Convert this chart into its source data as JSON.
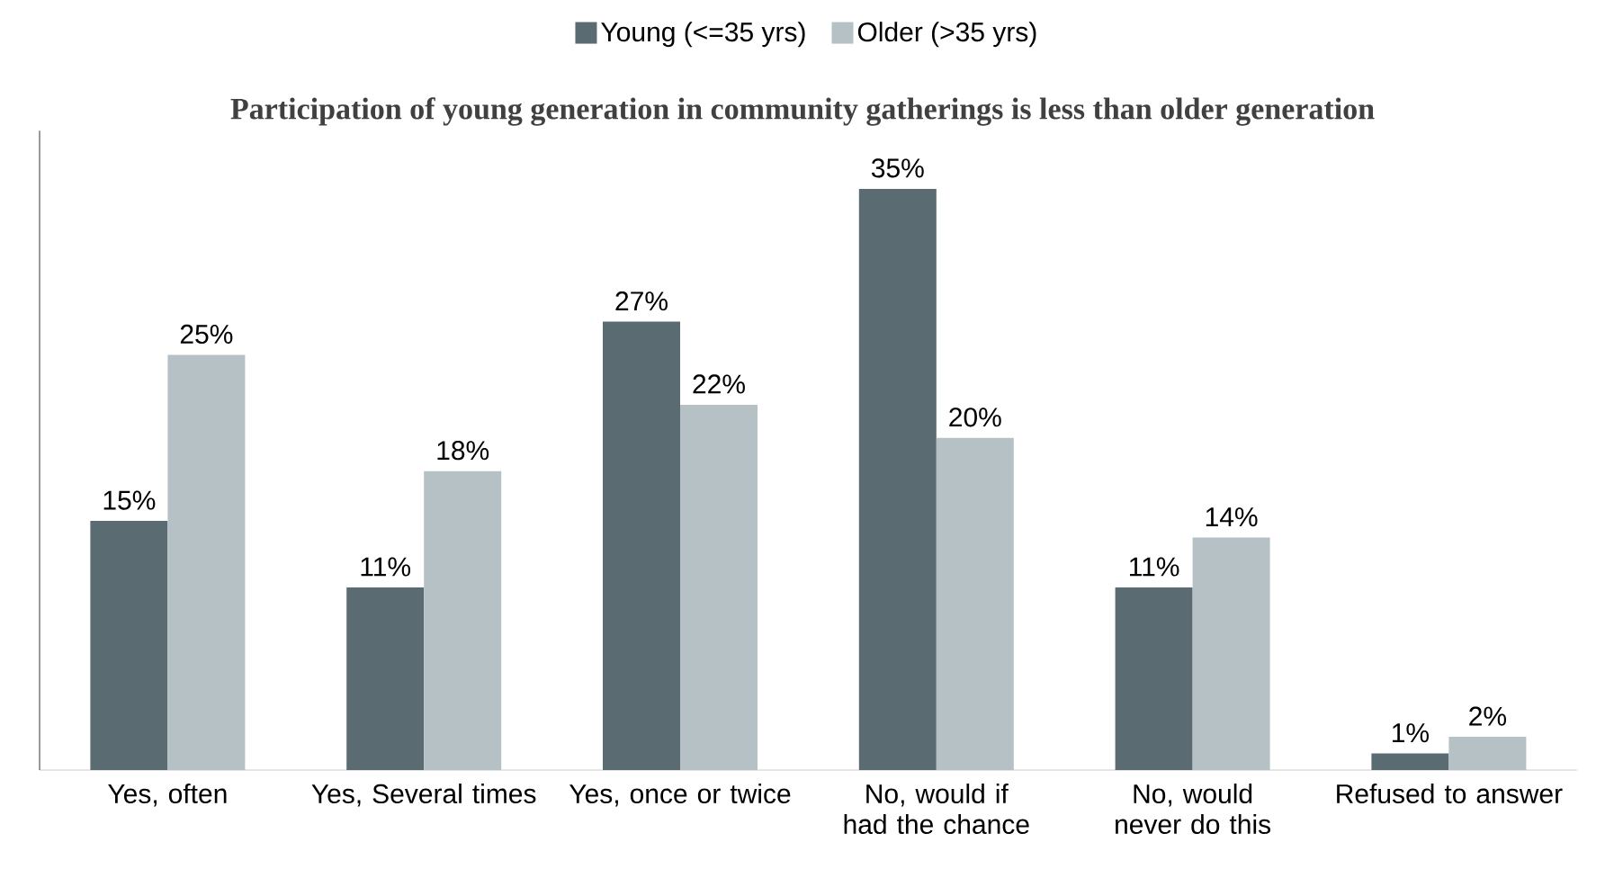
{
  "chart_data": {
    "type": "bar",
    "title": "Participation of young generation in community gatherings is less than older generation",
    "categories": [
      "Yes, often",
      "Yes, Several times",
      "Yes, once or twice",
      "No, would if had the chance",
      "No, would never do this",
      "Refused to answer"
    ],
    "relative": false,
    "legend": "top",
    "series": [
      {
        "name": "Young (<=35 yrs)",
        "color": "#5b6b72",
        "values": [
          15,
          11,
          27,
          35,
          11,
          1
        ],
        "value_labels": [
          "15%",
          "11%",
          "27%",
          "35%",
          "11%",
          "1%"
        ]
      },
      {
        "name": "Older (>35 yrs)",
        "color": "#b6c1c5",
        "values": [
          25,
          18,
          22,
          20,
          14,
          2
        ],
        "value_labels": [
          "25%",
          "18%",
          "22%",
          "20%",
          "14%",
          "2%"
        ]
      }
    ]
  }
}
